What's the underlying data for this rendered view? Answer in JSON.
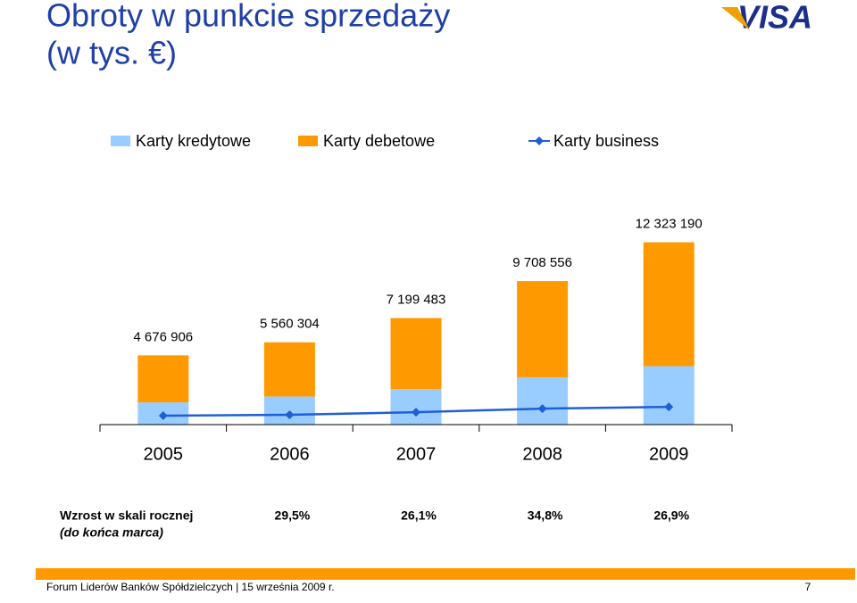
{
  "title_lines": [
    "Obroty w punkcie sprzedaży",
    "(w tys. €)"
  ],
  "logo": "VISA",
  "chart_data": {
    "type": "bar",
    "categories": [
      "2005",
      "2006",
      "2007",
      "2008",
      "2009"
    ],
    "series": [
      {
        "name": "Karty kredytowe",
        "color": "#99ccff",
        "values": [
          1500000,
          1900000,
          2400000,
          3200000,
          3950000
        ]
      },
      {
        "name": "Karty debetowe",
        "color": "#ff9900",
        "values": [
          3180000,
          3660000,
          4800000,
          6500000,
          8370000
        ]
      },
      {
        "name": "Karty business",
        "color": "#1f5fd6",
        "type": "line",
        "values": [
          600000,
          660000,
          840000,
          1080000,
          1200000
        ]
      }
    ],
    "totals": [
      4676906,
      5560304,
      7199483,
      9708556,
      12323190
    ],
    "total_labels": [
      "4 676 906",
      "5 560 304",
      "7 199 483",
      "9 708 556",
      "12 323 190"
    ],
    "ylim": [
      0,
      12900000
    ]
  },
  "growth": {
    "label": "Wzrost w skali rocznej",
    "note": "(do końca marca)",
    "values": [
      "29,5%",
      "26,1%",
      "34,8%",
      "26,9%"
    ]
  },
  "footer": {
    "text": "Forum Liderów Banków Spółdzielczych | 15 września 2009 r.",
    "page": "7"
  }
}
